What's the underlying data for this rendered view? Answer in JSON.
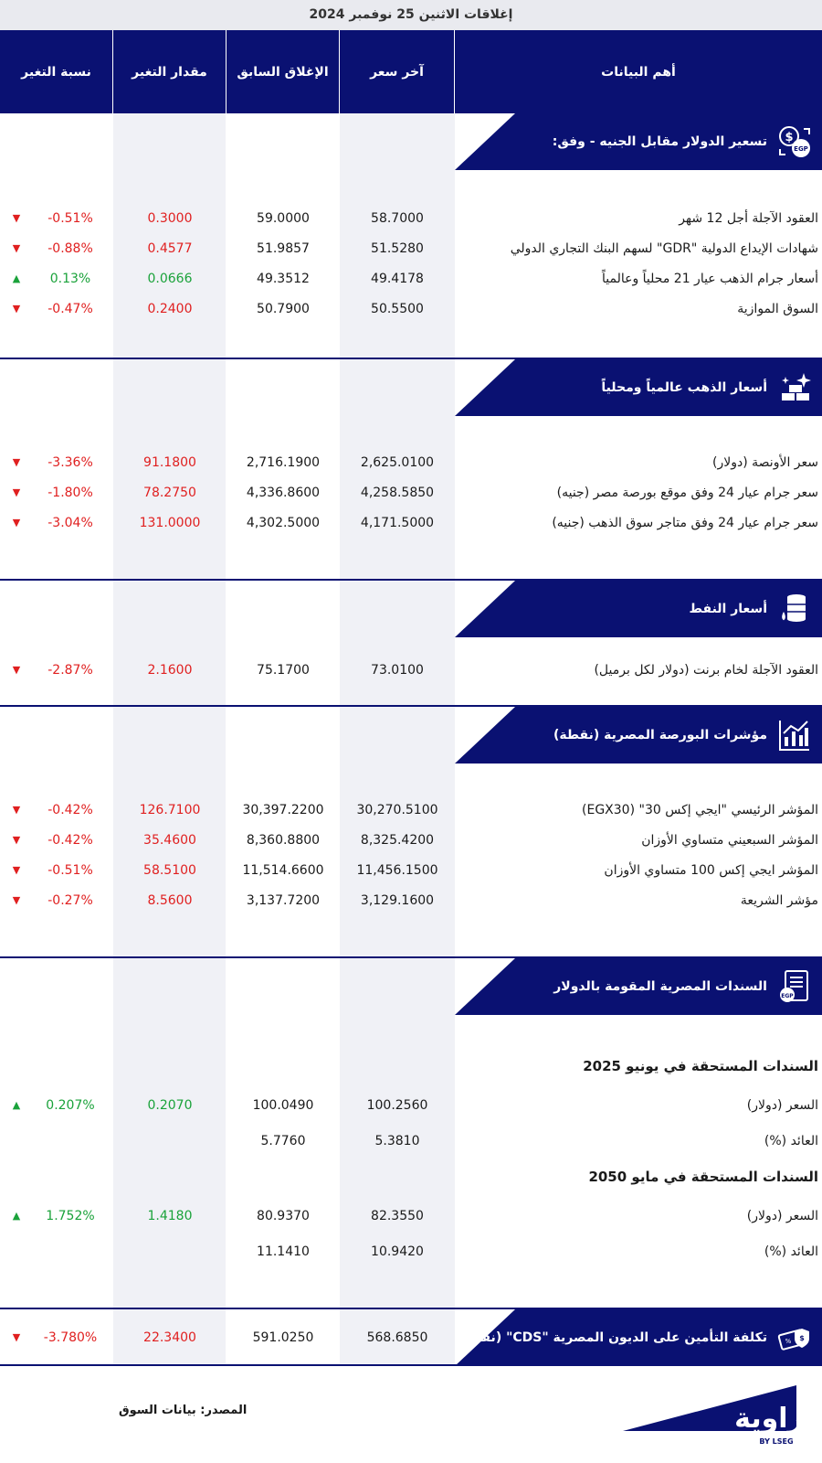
{
  "top_title": "إغلاقات الاثنين 25 نوفمبر 2024",
  "headers": {
    "main": "أهم البيانات",
    "last_price": "آخر سعر",
    "prev_close": "الإغلاق السابق",
    "change": "مقدار التغير",
    "change_pct": "نسبة التغير"
  },
  "colors": {
    "navy": "#0a1172",
    "negative": "#e02020",
    "positive": "#1aa23a"
  },
  "sections": [
    {
      "title": "تسعير الدولار مقابل الجنيه - وفق:",
      "icon": "dollar-egp-exchange-icon",
      "rows": [
        {
          "label": "العقود الآجلة أجل 12 شهر",
          "last": "58.7000",
          "prev": "59.0000",
          "chg": "0.3000",
          "pct": "-0.51%",
          "dir": "down"
        },
        {
          "label": "شهادات الإيداع الدولية \"GDR\" لسهم البنك التجاري الدولي",
          "last": "51.5280",
          "prev": "51.9857",
          "chg": "0.4577",
          "pct": "-0.88%",
          "dir": "down"
        },
        {
          "label": "أسعار جرام الذهب عيار 21 محلياً وعالمياً",
          "last": "49.4178",
          "prev": "49.3512",
          "chg": "0.0666",
          "pct": "0.13%",
          "dir": "up"
        },
        {
          "label": "السوق الموازية",
          "last": "50.5500",
          "prev": "50.7900",
          "chg": "0.2400",
          "pct": "-0.47%",
          "dir": "down"
        }
      ]
    },
    {
      "title": "أسعار الذهب عالمياً ومحلياً",
      "icon": "gold-bars-icon",
      "rows": [
        {
          "label": "سعر الأونصة (دولار)",
          "last": "2,625.0100",
          "prev": "2,716.1900",
          "chg": "91.1800",
          "pct": "-3.36%",
          "dir": "down"
        },
        {
          "label": "سعر جرام عيار 24 وفق موقع بورصة مصر (جنيه)",
          "last": "4,258.5850",
          "prev": "4,336.8600",
          "chg": "78.2750",
          "pct": "-1.80%",
          "dir": "down"
        },
        {
          "label": "سعر جرام عيار 24 وفق متاجر سوق الذهب (جنيه)",
          "last": "4,171.5000",
          "prev": "4,302.5000",
          "chg": "131.0000",
          "pct": "-3.04%",
          "dir": "down"
        }
      ]
    },
    {
      "title": "أسعار النفط",
      "icon": "oil-barrel-icon",
      "rows": [
        {
          "label": "العقود الآجلة لخام برنت (دولار لكل برميل)",
          "last": "73.0100",
          "prev": "75.1700",
          "chg": "2.1600",
          "pct": "-2.87%",
          "dir": "down"
        }
      ]
    },
    {
      "title": "مؤشرات البورصة المصرية (نقطة)",
      "icon": "stock-chart-icon",
      "rows": [
        {
          "label": "المؤشر الرئيسي \"ايجي إكس 30\" (EGX30)",
          "last": "30,270.5100",
          "prev": "30,397.2200",
          "chg": "126.7100",
          "pct": "-0.42%",
          "dir": "down"
        },
        {
          "label": "المؤشر السبعيني متساوي الأوزان",
          "last": "8,325.4200",
          "prev": "8,360.8800",
          "chg": "35.4600",
          "pct": "-0.42%",
          "dir": "down"
        },
        {
          "label": "المؤشر ايجي إكس 100 متساوي الأوزان",
          "last": "11,456.1500",
          "prev": "11,514.6600",
          "chg": "58.5100",
          "pct": "-0.51%",
          "dir": "down"
        },
        {
          "label": "مؤشر الشريعة",
          "last": "3,129.1600",
          "prev": "3,137.7200",
          "chg": "8.5600",
          "pct": "-0.27%",
          "dir": "down"
        }
      ]
    },
    {
      "title": "السندات المصرية المقومة بالدولار",
      "icon": "bond-certificate-icon",
      "groups": [
        {
          "heading": "السندات المستحقة في يونيو 2025",
          "rows": [
            {
              "label": "السعر (دولار)",
              "last": "100.2560",
              "prev": "100.0490",
              "chg": "0.2070",
              "pct": "0.207%",
              "dir": "up"
            },
            {
              "label": "العائد (%)",
              "last": "5.3810",
              "prev": "5.7760",
              "chg": "",
              "pct": "",
              "dir": ""
            }
          ]
        },
        {
          "heading": "السندات المستحقة في مايو 2050",
          "rows": [
            {
              "label": "السعر (دولار)",
              "last": "82.3550",
              "prev": "80.9370",
              "chg": "1.4180",
              "pct": "1.752%",
              "dir": "up"
            },
            {
              "label": "العائد (%)",
              "last": "10.9420",
              "prev": "11.1410",
              "chg": "",
              "pct": "",
              "dir": ""
            }
          ]
        }
      ]
    },
    {
      "title": "تكلفة التأمين على الديون المصرية \"CDS\" (نقطة)",
      "icon": "insurance-shield-icon",
      "inline_row": {
        "last": "568.6850",
        "prev": "591.0250",
        "chg": "22.3400",
        "pct": "-3.780%",
        "dir": "down"
      }
    }
  ],
  "footer": {
    "source": "المصدر: بيانات السوق",
    "logo_text": "زاوية",
    "logo_sub": "BY LSEG"
  }
}
